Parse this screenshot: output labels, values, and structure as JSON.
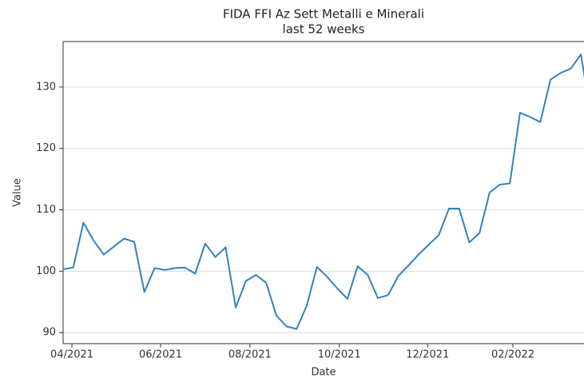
{
  "chart_data": {
    "type": "line",
    "title": "FIDA FFI Az Sett Metalli e Minerali",
    "subtitle": "last 52 weeks",
    "xlabel": "Date",
    "ylabel": "Value",
    "categories": [
      null,
      null,
      null,
      null,
      null,
      null,
      null,
      null,
      null,
      null,
      null,
      null,
      null,
      null,
      null,
      null,
      null,
      null,
      null,
      null,
      null,
      null,
      null,
      null,
      null,
      null,
      null,
      null,
      null,
      null,
      null,
      null,
      null,
      null,
      null,
      null,
      null,
      null,
      null,
      null,
      null,
      null,
      null,
      null,
      null,
      null,
      null,
      null,
      null,
      null,
      null,
      null,
      null
    ],
    "series": [
      {
        "name": "Value",
        "color": "#3282bd",
        "values": [
          100.3,
          100.6,
          107.9,
          105.0,
          102.7,
          104.0,
          105.3,
          104.8,
          96.6,
          100.5,
          100.2,
          100.5,
          100.6,
          99.6,
          104.5,
          102.3,
          103.9,
          94.1,
          98.4,
          99.4,
          98.1,
          92.8,
          91.0,
          90.6,
          94.4,
          100.7,
          99.1,
          97.2,
          95.5,
          100.8,
          99.4,
          95.6,
          96.1,
          99.2,
          100.9,
          102.7,
          104.3,
          105.9,
          110.2,
          110.2,
          104.7,
          106.2,
          112.8,
          114.1,
          114.3,
          125.8,
          125.1,
          124.3,
          131.2,
          132.3,
          133.0,
          135.3,
          125.0
        ]
      }
    ],
    "xlim": [
      0,
      51.3
    ],
    "xticks": [
      {
        "value": 0.87,
        "label": "04/2021"
      },
      {
        "value": 9.6,
        "label": "06/2021"
      },
      {
        "value": 18.4,
        "label": "08/2021"
      },
      {
        "value": 27.2,
        "label": "10/2021"
      },
      {
        "value": 35.9,
        "label": "12/2021"
      },
      {
        "value": 44.3,
        "label": "02/2022"
      }
    ],
    "ylim": [
      88.2,
      137.4
    ],
    "yticks": [
      90,
      100,
      110,
      120,
      130
    ],
    "grid": true
  }
}
